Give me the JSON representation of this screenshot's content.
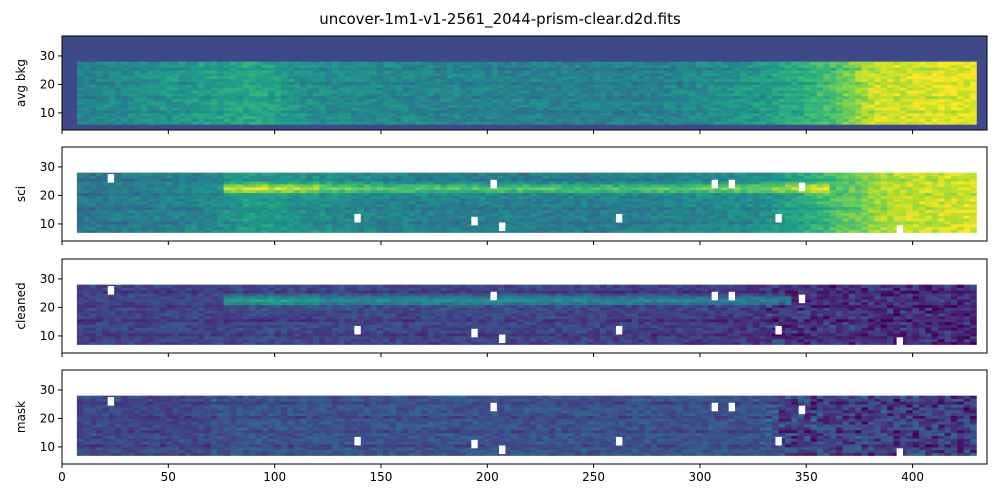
{
  "chart_data": {
    "type": "heatmap",
    "title": "uncover-1m1-v1-2561_2044-prism-clear.d2d.fits",
    "colormap": "viridis",
    "x_ticks": [
      0,
      50,
      100,
      150,
      200,
      250,
      300,
      350,
      400
    ],
    "xlim": [
      0,
      435
    ],
    "panels": [
      {
        "name": "avg-bkg",
        "ylabel": "avg bkg",
        "ylim": [
          4,
          37
        ],
        "y_ticks": [
          10,
          20,
          30
        ],
        "x_extent": [
          7,
          428
        ],
        "y_extent": [
          6,
          28
        ],
        "profile": [
          {
            "x": 7,
            "level": 0.45
          },
          {
            "x": 60,
            "level": 0.55
          },
          {
            "x": 90,
            "level": 0.6
          },
          {
            "x": 120,
            "level": 0.5
          },
          {
            "x": 200,
            "level": 0.45
          },
          {
            "x": 280,
            "level": 0.45
          },
          {
            "x": 330,
            "level": 0.55
          },
          {
            "x": 360,
            "level": 0.7
          },
          {
            "x": 380,
            "level": 0.92
          },
          {
            "x": 428,
            "level": 0.98
          }
        ],
        "masked": []
      },
      {
        "name": "sci",
        "ylabel": "sci",
        "ylim": [
          4,
          37
        ],
        "y_ticks": [
          10,
          20,
          30
        ],
        "x_extent": [
          7,
          428
        ],
        "y_extent": [
          7,
          28
        ],
        "profile": [
          {
            "x": 7,
            "level": 0.4
          },
          {
            "x": 60,
            "level": 0.45
          },
          {
            "x": 90,
            "level": 0.55
          },
          {
            "x": 150,
            "level": 0.45
          },
          {
            "x": 250,
            "level": 0.42
          },
          {
            "x": 330,
            "level": 0.5
          },
          {
            "x": 360,
            "level": 0.7
          },
          {
            "x": 390,
            "level": 0.9
          },
          {
            "x": 428,
            "level": 0.95
          }
        ],
        "trace": {
          "y": 22,
          "x_range": [
            75,
            360
          ],
          "strength": 0.3
        },
        "masked": [
          {
            "x": 23,
            "y": 26
          },
          {
            "x": 139,
            "y": 12
          },
          {
            "x": 194,
            "y": 11
          },
          {
            "x": 203,
            "y": 24
          },
          {
            "x": 207,
            "y": 9
          },
          {
            "x": 262,
            "y": 12
          },
          {
            "x": 307,
            "y": 24
          },
          {
            "x": 315,
            "y": 24
          },
          {
            "x": 337,
            "y": 12
          },
          {
            "x": 348,
            "y": 23
          },
          {
            "x": 394,
            "y": 8
          }
        ]
      },
      {
        "name": "cleaned",
        "ylabel": "cleaned",
        "ylim": [
          4,
          37
        ],
        "y_ticks": [
          10,
          20,
          30
        ],
        "x_extent": [
          7,
          428
        ],
        "y_extent": [
          7,
          28
        ],
        "profile": [
          {
            "x": 7,
            "level": 0.2
          },
          {
            "x": 100,
            "level": 0.22
          },
          {
            "x": 250,
            "level": 0.2
          },
          {
            "x": 350,
            "level": 0.15
          },
          {
            "x": 428,
            "level": 0.12
          }
        ],
        "trace": {
          "y": 22,
          "x_range": [
            75,
            340
          ],
          "strength": 0.28
        },
        "masked": [
          {
            "x": 23,
            "y": 26
          },
          {
            "x": 139,
            "y": 12
          },
          {
            "x": 194,
            "y": 11
          },
          {
            "x": 203,
            "y": 24
          },
          {
            "x": 207,
            "y": 9
          },
          {
            "x": 262,
            "y": 12
          },
          {
            "x": 307,
            "y": 24
          },
          {
            "x": 315,
            "y": 24
          },
          {
            "x": 337,
            "y": 12
          },
          {
            "x": 348,
            "y": 23
          },
          {
            "x": 394,
            "y": 8
          }
        ]
      },
      {
        "name": "mask",
        "ylabel": "mask",
        "ylim": [
          4,
          37
        ],
        "y_ticks": [
          10,
          20,
          30
        ],
        "x_extent": [
          7,
          428
        ],
        "y_extent": [
          7,
          28
        ],
        "profile": [
          {
            "x": 7,
            "level": 0.22
          },
          {
            "x": 68,
            "level": 0.22
          },
          {
            "x": 69,
            "level": 0.26
          },
          {
            "x": 330,
            "level": 0.26
          },
          {
            "x": 340,
            "level": 0.2
          },
          {
            "x": 428,
            "level": 0.18
          }
        ],
        "masked": [
          {
            "x": 23,
            "y": 26
          },
          {
            "x": 139,
            "y": 12
          },
          {
            "x": 194,
            "y": 11
          },
          {
            "x": 203,
            "y": 24
          },
          {
            "x": 207,
            "y": 9
          },
          {
            "x": 262,
            "y": 12
          },
          {
            "x": 307,
            "y": 24
          },
          {
            "x": 315,
            "y": 24
          },
          {
            "x": 337,
            "y": 12
          },
          {
            "x": 348,
            "y": 23
          },
          {
            "x": 394,
            "y": 8
          }
        ]
      }
    ]
  }
}
